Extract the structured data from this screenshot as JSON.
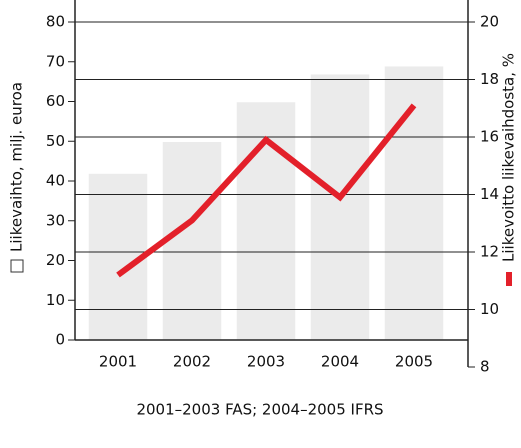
{
  "chart_data": {
    "type": "bar-line",
    "categories": [
      "2001",
      "2002",
      "2003",
      "2004",
      "2005"
    ],
    "series": [
      {
        "name": "Liikevaihto, milj. euroa",
        "type": "bar",
        "color": "#ebebeb",
        "values": [
          42,
          50,
          60,
          67,
          69
        ]
      },
      {
        "name": "Liikevoitto liikevaihdosta, %",
        "type": "line",
        "axis": "y2",
        "color": "#e3202a",
        "values": [
          11.2,
          13.1,
          15.9,
          13.9,
          17.1
        ]
      }
    ],
    "ylim": [
      0,
      80
    ],
    "yticks": [
      0,
      10,
      20,
      30,
      40,
      50,
      60,
      70,
      80
    ],
    "y2lim": [
      8,
      20
    ],
    "y2ticks": [
      8,
      10,
      12,
      14,
      16,
      18,
      20
    ],
    "grid": true,
    "note": "2001–2003 FAS;  2004–2005 IFRS"
  }
}
